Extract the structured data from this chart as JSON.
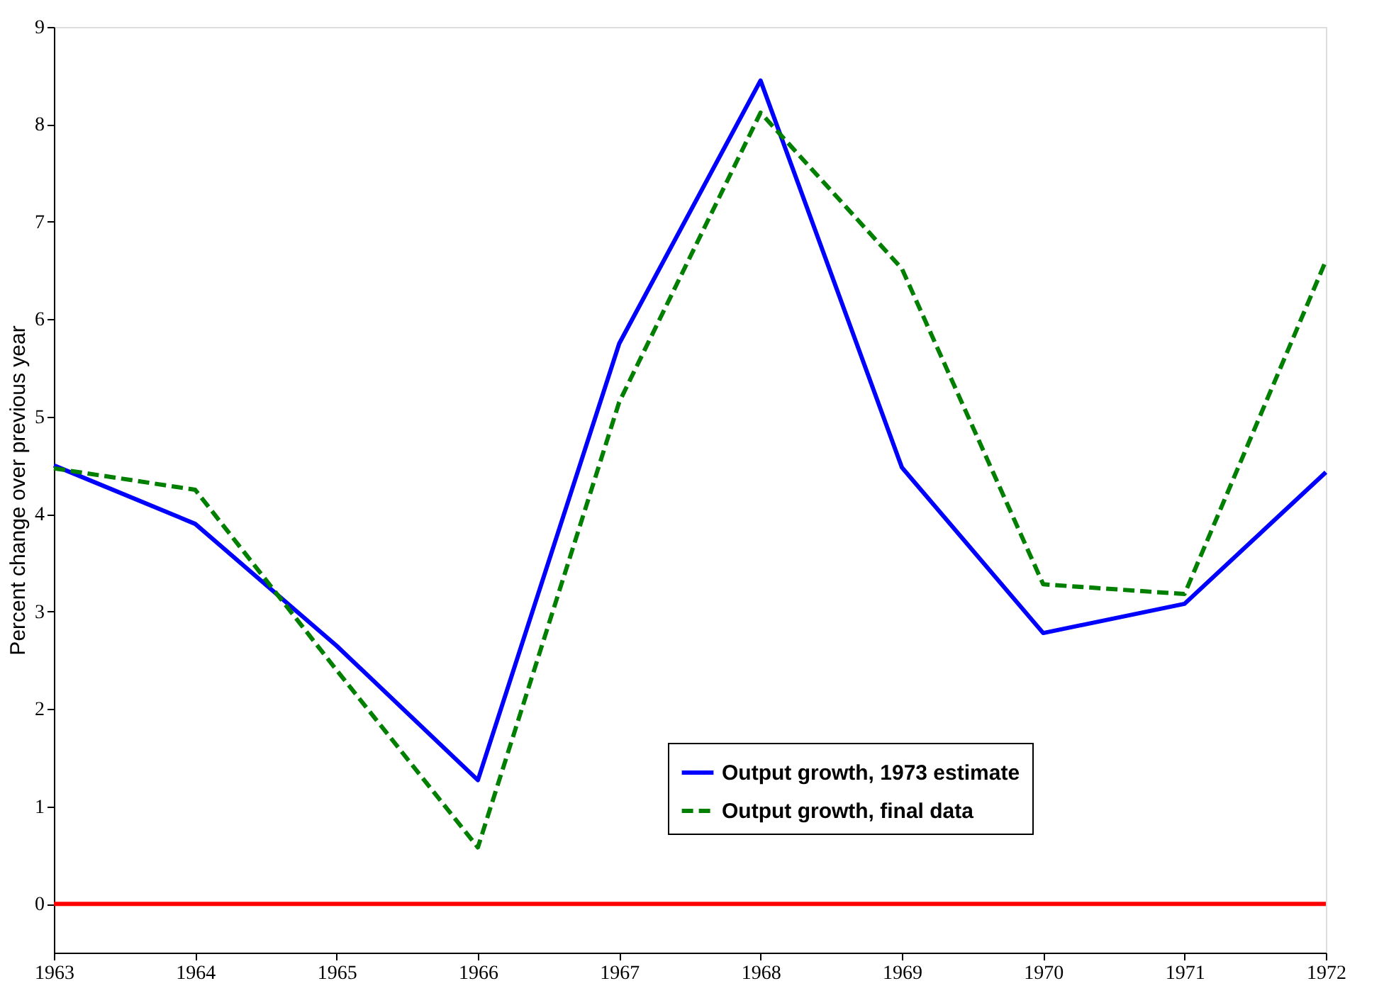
{
  "chart_data": {
    "type": "line",
    "ylabel": "Percent change over previous year",
    "x": [
      1963,
      1964,
      1965,
      1966,
      1967,
      1968,
      1969,
      1970,
      1971,
      1972
    ],
    "series": [
      {
        "name": "Output growth, 1973 estimate",
        "color": "#0000ff",
        "line_style": "solid",
        "values": [
          4.5,
          3.9,
          2.65,
          1.27,
          5.75,
          8.45,
          4.48,
          2.78,
          3.08,
          4.43
        ]
      },
      {
        "name": "Output growth, final data",
        "color": "#007f00",
        "line_style": "dashed",
        "values": [
          4.47,
          4.25,
          2.4,
          0.58,
          5.15,
          8.12,
          6.52,
          3.28,
          3.18,
          6.6
        ]
      }
    ],
    "xlim": [
      1963,
      1972
    ],
    "xticks": [
      1963,
      1964,
      1965,
      1966,
      1967,
      1968,
      1969,
      1970,
      1971,
      1972
    ],
    "ylim": [
      -0.5,
      9
    ],
    "yticks": [
      0,
      1,
      2,
      3,
      4,
      5,
      6,
      7,
      8,
      9
    ],
    "ref_lines": [
      {
        "axis": "y",
        "value": 0,
        "label": null,
        "color": "#ff0000",
        "line_style": "solid"
      }
    ],
    "grid": false,
    "legend": "bottom right",
    "marker": "none"
  }
}
